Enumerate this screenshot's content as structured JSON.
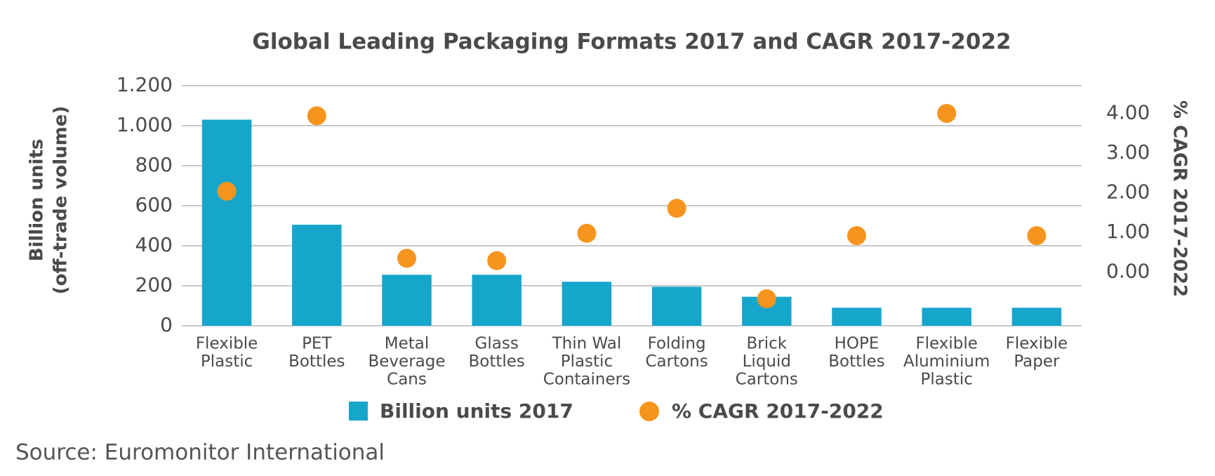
{
  "chart_data": {
    "type": "bar_dot",
    "title": "Global Leading Packaging Formats 2017 and CAGR 2017-2022",
    "y_label": [
      "Billion units",
      "(off-trade volume)"
    ],
    "y2_label": "% CAGR 2017-2022",
    "source": "Source: Euromonitor International",
    "categories": [
      [
        "Flexible",
        "Plastic"
      ],
      [
        "PET",
        "Bottles"
      ],
      [
        "Metal",
        "Beverage",
        "Cans"
      ],
      [
        "Glass",
        "Bottles"
      ],
      [
        "Thin Wal",
        "Plastic",
        "Containers"
      ],
      [
        "Folding",
        "Cartons"
      ],
      [
        "Brick",
        "Liquid",
        "Cartons"
      ],
      [
        "HOPE",
        "Bottles"
      ],
      [
        "Flexible",
        "Aluminium",
        "Plastic"
      ],
      [
        "Flexible",
        "Paper"
      ]
    ],
    "series": [
      {
        "name": "Billion units 2017",
        "color": "#16a6cc",
        "values": [
          1030,
          505,
          255,
          255,
          220,
          195,
          145,
          90,
          90,
          90
        ]
      },
      {
        "name": "% CAGR 2017-2022",
        "color": "#f7941d",
        "axis": "y2",
        "values": [
          2.04,
          3.94,
          0.35,
          0.29,
          0.98,
          1.61,
          -0.67,
          0.92,
          4.0,
          0.92
        ]
      }
    ],
    "ylim": [
      0,
      1200
    ],
    "yticks": [
      0,
      200,
      400,
      600,
      800,
      {
        "value": 1000,
        "label": "1.000"
      },
      {
        "value": 1200,
        "label": "1.200"
      }
    ],
    "y2lim": [
      -1.35,
      4.7
    ],
    "y2ticks": [
      {
        "value": 0,
        "label": "0.00"
      },
      {
        "value": 1,
        "label": "1.00"
      },
      {
        "value": 2,
        "label": "2.00"
      },
      {
        "value": 3,
        "label": "3.00"
      },
      {
        "value": 4,
        "label": "4.00"
      }
    ],
    "grid": true
  }
}
